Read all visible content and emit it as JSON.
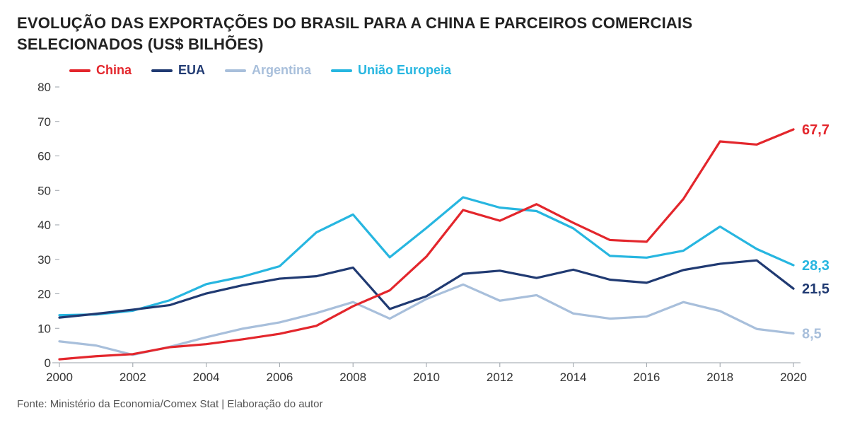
{
  "title_line1": "EVOLUÇÃO DAS EXPORTAÇÕES DO BRASIL PARA A CHINA E PARCEIROS COMERCIAIS",
  "title_line2": "SELECIONADOS (US$ BILHÕES)",
  "source": "Fonte: Ministério da Economia/Comex Stat | Elaboração do autor",
  "chart": {
    "type": "line",
    "years": [
      2000,
      2001,
      2002,
      2003,
      2004,
      2005,
      2006,
      2007,
      2008,
      2009,
      2010,
      2011,
      2012,
      2013,
      2014,
      2015,
      2016,
      2017,
      2018,
      2019,
      2020
    ],
    "x_ticks": [
      2000,
      2002,
      2004,
      2006,
      2008,
      2010,
      2012,
      2014,
      2016,
      2018,
      2020
    ],
    "y_ticks": [
      0,
      10,
      20,
      30,
      40,
      50,
      60,
      70,
      80
    ],
    "xlim": [
      2000,
      2020
    ],
    "ylim": [
      0,
      80
    ],
    "background_color": "#ffffff",
    "axis_color": "#9aa1a8",
    "tick_font_size": 17,
    "title_font_size": 22,
    "line_width": 3.2,
    "legend": {
      "items": [
        {
          "key": "china",
          "label": "China"
        },
        {
          "key": "eua",
          "label": "EUA"
        },
        {
          "key": "argentina",
          "label": "Argentina"
        },
        {
          "key": "ue",
          "label": "União Europeia"
        }
      ],
      "font_size": 18
    },
    "series": {
      "china": {
        "color": "#e3262c",
        "values": [
          1.0,
          1.9,
          2.5,
          4.5,
          5.4,
          6.8,
          8.4,
          10.7,
          16.4,
          21.0,
          30.8,
          44.3,
          41.2,
          46.0,
          40.6,
          35.6,
          35.1,
          47.5,
          64.2,
          63.3,
          67.7
        ],
        "end_label": "67,7"
      },
      "eua": {
        "color": "#203a72",
        "values": [
          13.1,
          14.2,
          15.4,
          16.7,
          20.1,
          22.5,
          24.4,
          25.1,
          27.6,
          15.6,
          19.3,
          25.8,
          26.7,
          24.6,
          27.0,
          24.1,
          23.2,
          26.9,
          28.7,
          29.7,
          21.5
        ],
        "end_label": "21,5"
      },
      "argentina": {
        "color": "#a8bfdb",
        "values": [
          6.2,
          5.0,
          2.3,
          4.6,
          7.4,
          9.9,
          11.7,
          14.4,
          17.6,
          12.8,
          18.5,
          22.7,
          18.0,
          19.6,
          14.3,
          12.8,
          13.4,
          17.6,
          15.0,
          9.8,
          8.5
        ],
        "end_label": "8,5"
      },
      "ue": {
        "color": "#27b6e0",
        "values": [
          13.8,
          14.0,
          15.1,
          18.1,
          22.8,
          25.0,
          28.0,
          37.8,
          43.0,
          30.6,
          39.1,
          48.0,
          45.0,
          44.0,
          39.0,
          31.0,
          30.5,
          32.5,
          39.5,
          33.0,
          28.3
        ],
        "end_label": "28,3"
      }
    },
    "end_label_font_size": 20
  }
}
